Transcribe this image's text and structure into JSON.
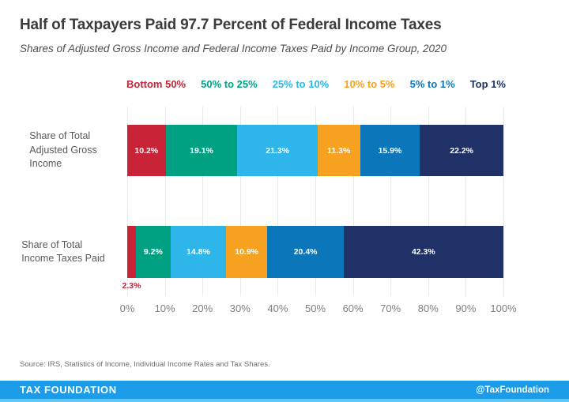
{
  "header": {
    "title": "Half of Taxpayers Paid 97.7 Percent of Federal Income Taxes",
    "subtitle": "Shares of Adjusted Gross Income and Federal Income Taxes Paid by Income Group, 2020"
  },
  "chart_data": {
    "type": "bar",
    "orientation": "horizontal",
    "stacked": true,
    "grid": true,
    "legend_position": "top",
    "xlim": [
      0,
      100
    ],
    "x_ticks": [
      "0%",
      "10%",
      "20%",
      "30%",
      "40%",
      "50%",
      "60%",
      "70%",
      "80%",
      "90%",
      "100%"
    ],
    "categories": [
      {
        "label": "Share of Total Adjusted Gross Income",
        "lines": [
          "Share of Total",
          "Adjusted Gross",
          "Income"
        ]
      },
      {
        "label": "Share of Total Income Taxes Paid",
        "lines": [
          "Share of Total",
          "Income Taxes Paid"
        ]
      }
    ],
    "series": [
      {
        "name": "Bottom 50%",
        "color": "#C82337",
        "values": [
          10.2,
          2.3
        ]
      },
      {
        "name": "50% to 25%",
        "color": "#00A183",
        "values": [
          19.1,
          9.2
        ]
      },
      {
        "name": "25% to 10%",
        "color": "#2EB5E9",
        "values": [
          21.3,
          14.8
        ]
      },
      {
        "name": "10% to 5%",
        "color": "#F6A11F",
        "values": [
          11.3,
          10.9
        ]
      },
      {
        "name": "5% to 1%",
        "color": "#0C76BB",
        "values": [
          15.9,
          20.4
        ]
      },
      {
        "name": "Top 1%",
        "color": "#203167",
        "values": [
          22.2,
          42.3
        ]
      }
    ],
    "value_suffix": "%",
    "outside_label_threshold": 5
  },
  "footer": {
    "source": "Source: IRS, Statistics of Income, Individual Income Rates and Tax Shares.",
    "brand": "TAX FOUNDATION",
    "handle": "@TaxFoundation"
  },
  "colors": {
    "footer_bar": "#1C9CE8",
    "footer_accent": "#5FC6F4",
    "grid_line": "#E9E9E9"
  }
}
